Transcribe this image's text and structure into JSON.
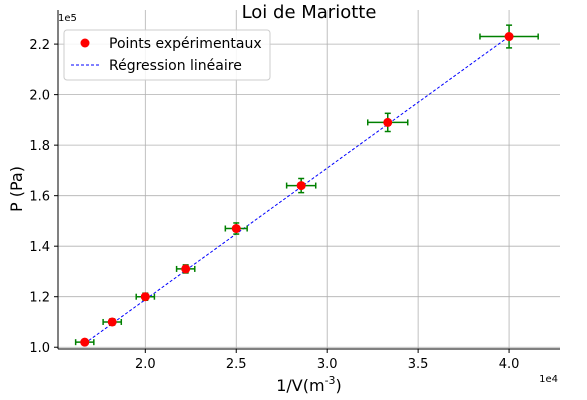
{
  "chart_data": {
    "type": "scatter",
    "title": "Loi de Mariotte",
    "xlabel": "1/V(m^-3)",
    "ylabel": "P (Pa)",
    "x_offset_text": "1e4",
    "y_offset_text": "1e5",
    "xlim": [
      1.52,
      4.28
    ],
    "ylim": [
      0.993,
      2.335
    ],
    "x_ticks": [
      2.0,
      2.5,
      3.0,
      3.5,
      4.0
    ],
    "x_tick_labels": [
      "2.0",
      "2.5",
      "3.0",
      "3.5",
      "4.0"
    ],
    "y_ticks": [
      1.0,
      1.2,
      1.4,
      1.6,
      1.8,
      2.0,
      2.2
    ],
    "y_tick_labels": [
      "1.0",
      "1.2",
      "1.4",
      "1.6",
      "1.8",
      "2.0",
      "2.2"
    ],
    "grid": true,
    "legend_position": "top-left",
    "series": [
      {
        "name": "Points expérimentaux",
        "kind": "points",
        "color": "#ff0000",
        "errorbar_color": "#008000",
        "points": [
          {
            "x": 1.667,
            "y": 1.02,
            "xerr": 0.05,
            "yerr": 0.01
          },
          {
            "x": 1.818,
            "y": 1.1,
            "xerr": 0.05,
            "yerr": 0.012
          },
          {
            "x": 2.0,
            "y": 1.2,
            "xerr": 0.05,
            "yerr": 0.014
          },
          {
            "x": 2.222,
            "y": 1.31,
            "xerr": 0.05,
            "yerr": 0.016
          },
          {
            "x": 2.5,
            "y": 1.47,
            "xerr": 0.06,
            "yerr": 0.022
          },
          {
            "x": 2.857,
            "y": 1.64,
            "xerr": 0.08,
            "yerr": 0.028
          },
          {
            "x": 3.333,
            "y": 1.89,
            "xerr": 0.11,
            "yerr": 0.036
          },
          {
            "x": 4.0,
            "y": 2.23,
            "xerr": 0.16,
            "yerr": 0.045
          }
        ]
      },
      {
        "name": "Régression linéaire",
        "kind": "line",
        "color": "#0000ff",
        "x": [
          1.667,
          4.0
        ],
        "y": [
          1.015,
          2.23
        ]
      }
    ]
  }
}
